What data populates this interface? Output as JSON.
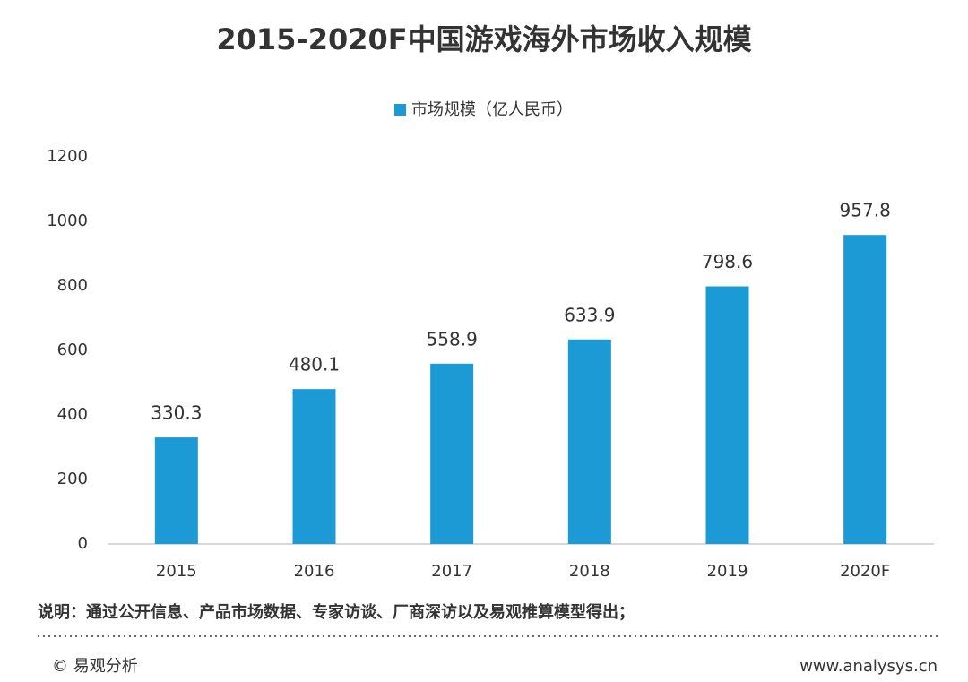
{
  "chart_data": {
    "type": "bar",
    "title": "2015-2020F中国游戏海外市场收入规模",
    "categories": [
      "2015",
      "2016",
      "2017",
      "2018",
      "2019",
      "2020F"
    ],
    "series": [
      {
        "name": "市场规模（亿人民币）",
        "color": "#1b9ad6",
        "values": [
          330.3,
          480.1,
          558.9,
          633.9,
          798.6,
          957.8
        ]
      }
    ],
    "ylim": [
      0,
      1200
    ],
    "yticks": [
      0,
      200,
      400,
      600,
      800,
      1000,
      1200
    ],
    "grid": false,
    "legend": "top",
    "footnote": "说明：通过公开信息、产品市场数据、专家访谈、厂商深访以及易观推算模型得出；",
    "copyright": "© 易观分析",
    "website": "www.analysys.cn"
  }
}
